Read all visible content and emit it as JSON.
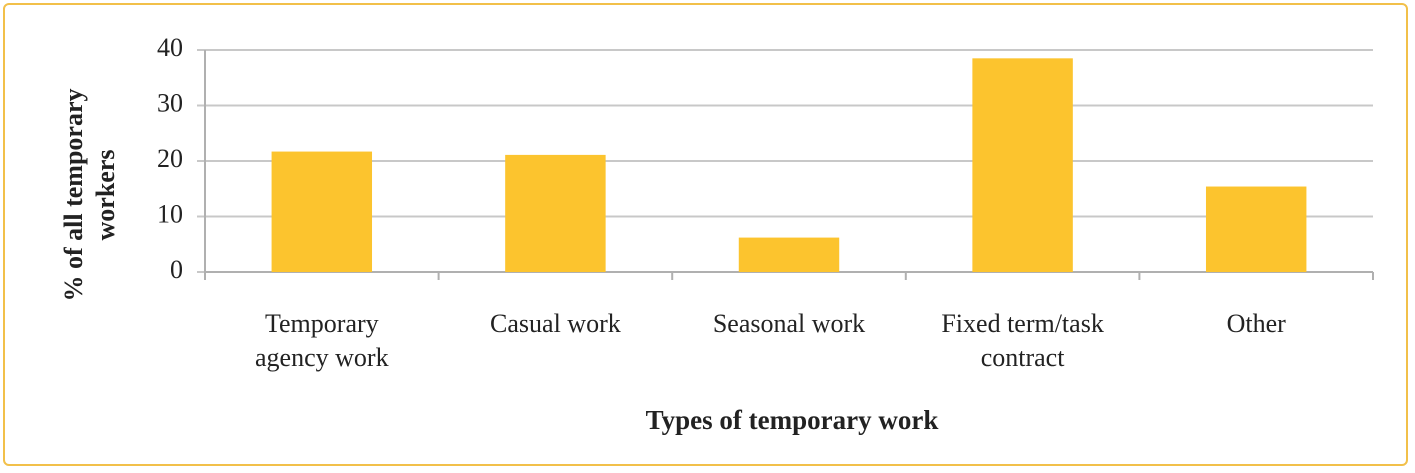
{
  "chart_data": {
    "type": "bar",
    "x_label": "Types of temporary work",
    "y_label": "% of all temporary workers",
    "categories": [
      "Temporary\nagency work",
      "Casual work",
      "Seasonal work",
      "Fixed term/task\ncontract",
      "Other"
    ],
    "values": [
      21.7,
      21.1,
      6.2,
      38.5,
      15.4
    ],
    "color": "#fcc42e",
    "ylim": [
      0,
      40
    ],
    "yticks": [
      0,
      10,
      20,
      30,
      40
    ],
    "grid": true
  }
}
